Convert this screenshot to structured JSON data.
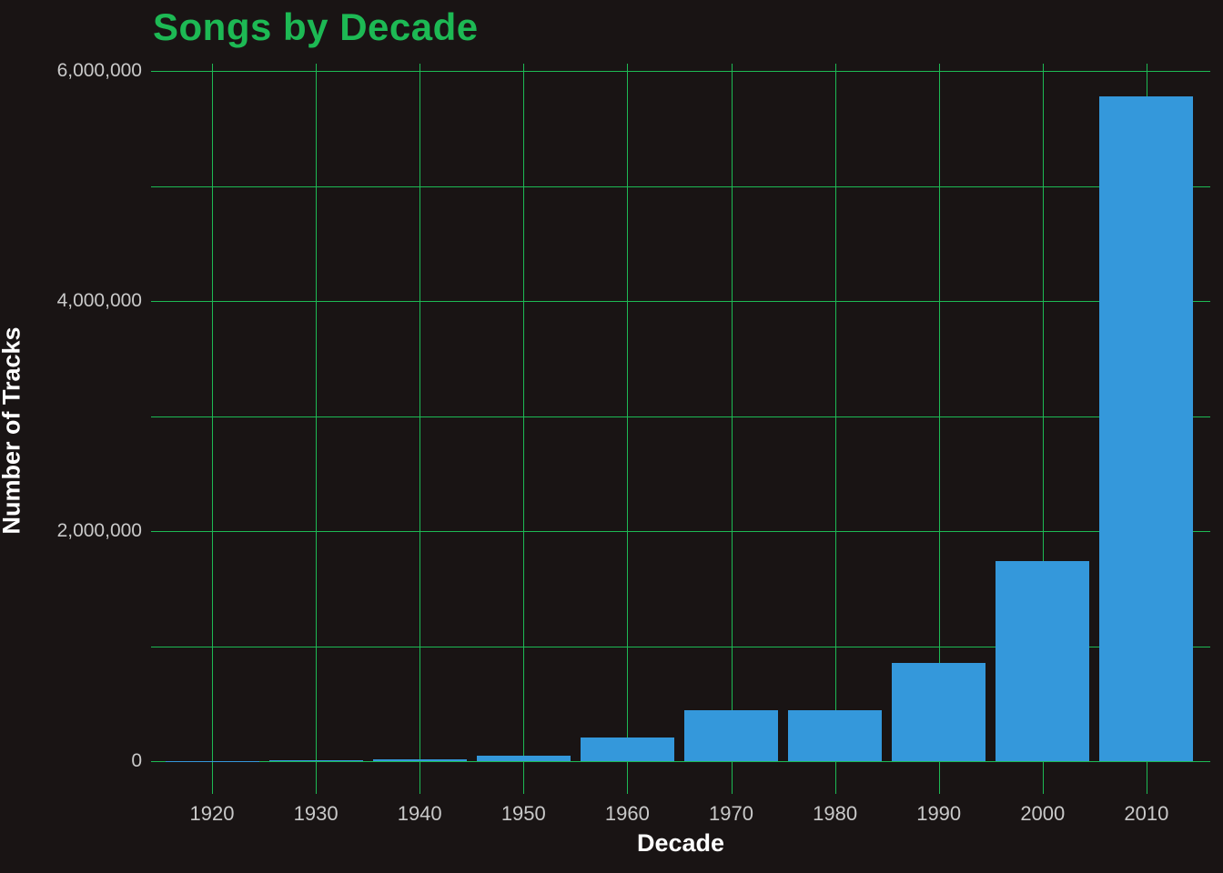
{
  "title": "Songs by Decade",
  "colors": {
    "background": "#191414",
    "grid_green": "#1DB954",
    "title_green": "#1DB954",
    "bar_blue": "#3498DB",
    "tick_label_gray": "#C9C9C9",
    "axis_title_white": "#FFFFFF"
  },
  "chart_data": {
    "type": "bar",
    "title": "Songs by Decade",
    "xlabel": "Decade",
    "ylabel": "Number of Tracks",
    "categories": [
      "1920",
      "1930",
      "1940",
      "1950",
      "1960",
      "1970",
      "1980",
      "1990",
      "2000",
      "2010"
    ],
    "values": [
      1000,
      4000,
      15000,
      50000,
      205000,
      440000,
      445000,
      850000,
      1740000,
      5780000
    ],
    "series_name": "Number of Tracks",
    "ylim": [
      -280000,
      6060000
    ],
    "ygrid_step": 1000000,
    "ytick_values": [
      0,
      2000000,
      4000000,
      6000000
    ],
    "ytick_labels": [
      "0",
      "2,000,000",
      "4,000,000",
      "6,000,000"
    ],
    "grid": true,
    "legend_position": "none",
    "bar_color": "#3498DB",
    "background": "dark"
  }
}
